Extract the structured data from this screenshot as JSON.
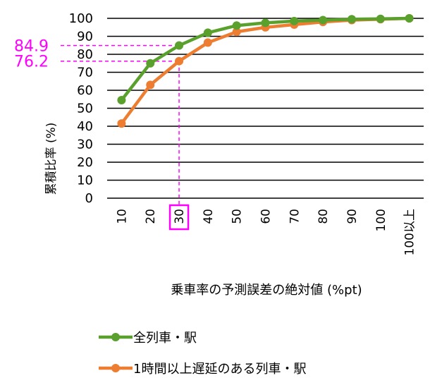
{
  "chart_data": {
    "type": "line",
    "title": "",
    "xlabel": "乗車率の予測誤差の絶対値 (%pt)",
    "ylabel": "累積比率 (%)",
    "categories": [
      "10",
      "20",
      "30",
      "40",
      "50",
      "60",
      "70",
      "80",
      "90",
      "100",
      "100以上"
    ],
    "ylim": [
      0,
      100
    ],
    "yticks": [
      0,
      10,
      20,
      30,
      40,
      50,
      60,
      70,
      80,
      90,
      100
    ],
    "grid": true,
    "legend_position": "bottom",
    "series": [
      {
        "name": "全列車・駅",
        "color": "#5aa02c",
        "values": [
          54.5,
          75,
          84.9,
          92,
          96,
          97.5,
          98.5,
          99,
          99.5,
          99.7,
          100
        ]
      },
      {
        "name": "1時間以上遅延のある列車・駅",
        "color": "#ed7d31",
        "values": [
          41.5,
          63,
          76.2,
          86.5,
          92.5,
          95,
          96.5,
          98,
          99,
          99.5,
          100
        ]
      }
    ],
    "annotations": {
      "color": "#ff00ff",
      "highlight_category": "30",
      "labels": [
        "84.9",
        "76.2"
      ]
    }
  }
}
